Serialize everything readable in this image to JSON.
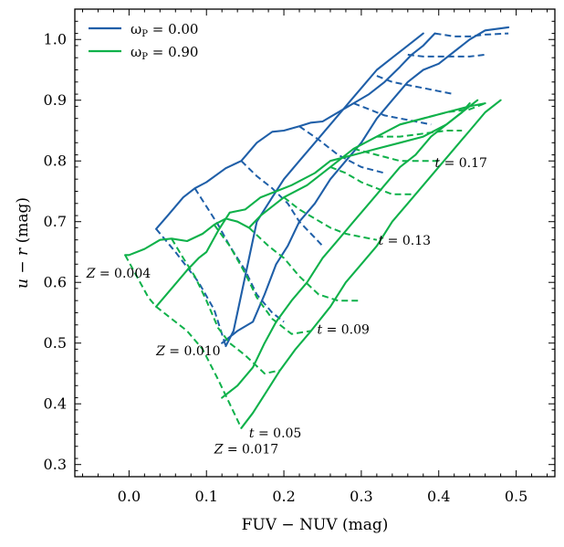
{
  "chart_data": {
    "type": "line",
    "xlabel": "FUV − NUV (mag)",
    "ylabel": "u − r (mag)",
    "xlim": [
      -0.07,
      0.55
    ],
    "ylim": [
      0.28,
      1.05
    ],
    "xticks": [
      0.0,
      0.1,
      0.2,
      0.3,
      0.4,
      0.5
    ],
    "yticks": [
      0.3,
      0.4,
      0.5,
      0.6,
      0.7,
      0.8,
      0.9,
      1.0
    ],
    "xtick_labels": [
      "0.0",
      "0.1",
      "0.2",
      "0.3",
      "0.4",
      "0.5"
    ],
    "ytick_labels": [
      "0.3",
      "0.4",
      "0.5",
      "0.6",
      "0.7",
      "0.8",
      "0.9",
      "1.0"
    ],
    "legend": {
      "placement": "top-left",
      "entries": [
        {
          "label": "ωP = 0.00",
          "color": "#1f5fa8"
        },
        {
          "label": "ωP = 0.90",
          "color": "#0fb14a"
        }
      ]
    },
    "colors": {
      "blue": "#1f5fa8",
      "green": "#0fb14a"
    },
    "grids": [
      {
        "name": "ωP = 0.00",
        "color": "#1f5fa8",
        "metallicity_tracks": [
          [
            [
              0.035,
              0.688
            ],
            [
              0.05,
              0.71
            ],
            [
              0.07,
              0.74
            ],
            [
              0.085,
              0.755
            ],
            [
              0.1,
              0.765
            ],
            [
              0.125,
              0.788
            ],
            [
              0.145,
              0.8
            ],
            [
              0.165,
              0.83
            ],
            [
              0.185,
              0.848
            ],
            [
              0.2,
              0.85
            ],
            [
              0.22,
              0.857
            ],
            [
              0.235,
              0.863
            ],
            [
              0.25,
              0.865
            ],
            [
              0.27,
              0.88
            ],
            [
              0.29,
              0.895
            ],
            [
              0.31,
              0.91
            ],
            [
              0.33,
              0.93
            ],
            [
              0.35,
              0.955
            ],
            [
              0.365,
              0.975
            ],
            [
              0.38,
              0.99
            ],
            [
              0.395,
              1.01
            ]
          ],
          [
            [
              0.125,
              0.495
            ],
            [
              0.135,
              0.52
            ],
            [
              0.145,
              0.58
            ],
            [
              0.155,
              0.64
            ],
            [
              0.165,
              0.7
            ],
            [
              0.185,
              0.74
            ],
            [
              0.2,
              0.77
            ],
            [
              0.22,
              0.8
            ],
            [
              0.24,
              0.83
            ],
            [
              0.26,
              0.86
            ],
            [
              0.28,
              0.89
            ],
            [
              0.3,
              0.92
            ],
            [
              0.32,
              0.95
            ],
            [
              0.34,
              0.97
            ],
            [
              0.36,
              0.99
            ],
            [
              0.38,
              1.01
            ]
          ],
          [
            [
              0.12,
              0.5
            ],
            [
              0.14,
              0.52
            ],
            [
              0.16,
              0.535
            ],
            [
              0.175,
              0.58
            ],
            [
              0.19,
              0.63
            ],
            [
              0.205,
              0.66
            ],
            [
              0.22,
              0.7
            ],
            [
              0.24,
              0.73
            ],
            [
              0.26,
              0.77
            ],
            [
              0.28,
              0.8
            ],
            [
              0.3,
              0.83
            ],
            [
              0.32,
              0.87
            ],
            [
              0.34,
              0.9
            ],
            [
              0.36,
              0.93
            ],
            [
              0.38,
              0.95
            ],
            [
              0.4,
              0.96
            ],
            [
              0.42,
              0.98
            ],
            [
              0.44,
              1.0
            ],
            [
              0.46,
              1.015
            ],
            [
              0.49,
              1.02
            ]
          ]
        ],
        "age_tracks": [
          [
            [
              0.035,
              0.688
            ],
            [
              0.06,
              0.65
            ],
            [
              0.09,
              0.6
            ],
            [
              0.11,
              0.555
            ],
            [
              0.125,
              0.495
            ]
          ],
          [
            [
              0.085,
              0.755
            ],
            [
              0.1,
              0.725
            ],
            [
              0.115,
              0.695
            ],
            [
              0.13,
              0.66
            ],
            [
              0.15,
              0.62
            ],
            [
              0.165,
              0.58
            ],
            [
              0.185,
              0.55
            ],
            [
              0.2,
              0.535
            ]
          ],
          [
            [
              0.145,
              0.8
            ],
            [
              0.165,
              0.775
            ],
            [
              0.185,
              0.755
            ],
            [
              0.205,
              0.73
            ],
            [
              0.22,
              0.7
            ],
            [
              0.235,
              0.68
            ],
            [
              0.25,
              0.66
            ]
          ],
          [
            [
              0.22,
              0.857
            ],
            [
              0.245,
              0.835
            ],
            [
              0.27,
              0.81
            ],
            [
              0.3,
              0.79
            ],
            [
              0.33,
              0.78
            ]
          ],
          [
            [
              0.29,
              0.895
            ],
            [
              0.31,
              0.885
            ],
            [
              0.33,
              0.875
            ],
            [
              0.35,
              0.87
            ],
            [
              0.37,
              0.865
            ],
            [
              0.39,
              0.86
            ]
          ],
          [
            [
              0.32,
              0.94
            ],
            [
              0.34,
              0.93
            ],
            [
              0.36,
              0.925
            ],
            [
              0.38,
              0.92
            ],
            [
              0.4,
              0.915
            ],
            [
              0.42,
              0.91
            ]
          ],
          [
            [
              0.36,
              0.975
            ],
            [
              0.38,
              0.972
            ],
            [
              0.4,
              0.972
            ],
            [
              0.42,
              0.972
            ],
            [
              0.44,
              0.972
            ],
            [
              0.46,
              0.975
            ]
          ],
          [
            [
              0.395,
              1.01
            ],
            [
              0.42,
              1.005
            ],
            [
              0.44,
              1.005
            ],
            [
              0.46,
              1.008
            ],
            [
              0.49,
              1.01
            ]
          ]
        ]
      },
      {
        "name": "ωP = 0.90",
        "color": "#0fb14a",
        "metallicity_tracks": [
          [
            [
              -0.005,
              0.645
            ],
            [
              0.0,
              0.645
            ],
            [
              0.02,
              0.655
            ],
            [
              0.04,
              0.67
            ],
            [
              0.055,
              0.672
            ],
            [
              0.075,
              0.668
            ],
            [
              0.095,
              0.68
            ],
            [
              0.11,
              0.695
            ],
            [
              0.125,
              0.705
            ],
            [
              0.14,
              0.7
            ],
            [
              0.155,
              0.69
            ],
            [
              0.17,
              0.71
            ],
            [
              0.2,
              0.74
            ],
            [
              0.23,
              0.76
            ],
            [
              0.26,
              0.79
            ],
            [
              0.29,
              0.82
            ],
            [
              0.32,
              0.84
            ],
            [
              0.35,
              0.86
            ],
            [
              0.38,
              0.87
            ],
            [
              0.41,
              0.88
            ],
            [
              0.44,
              0.89
            ],
            [
              0.46,
              0.895
            ]
          ],
          [
            [
              0.035,
              0.56
            ],
            [
              0.055,
              0.59
            ],
            [
              0.075,
              0.62
            ],
            [
              0.09,
              0.64
            ],
            [
              0.1,
              0.65
            ],
            [
              0.115,
              0.685
            ],
            [
              0.13,
              0.715
            ],
            [
              0.15,
              0.72
            ],
            [
              0.17,
              0.74
            ],
            [
              0.19,
              0.75
            ],
            [
              0.21,
              0.76
            ],
            [
              0.24,
              0.78
            ],
            [
              0.26,
              0.8
            ],
            [
              0.29,
              0.81
            ],
            [
              0.32,
              0.82
            ],
            [
              0.35,
              0.83
            ],
            [
              0.38,
              0.84
            ],
            [
              0.41,
              0.86
            ],
            [
              0.43,
              0.88
            ],
            [
              0.45,
              0.9
            ]
          ],
          [
            [
              0.12,
              0.41
            ],
            [
              0.14,
              0.43
            ],
            [
              0.16,
              0.46
            ],
            [
              0.175,
              0.5
            ],
            [
              0.19,
              0.535
            ],
            [
              0.21,
              0.57
            ],
            [
              0.23,
              0.6
            ],
            [
              0.25,
              0.64
            ],
            [
              0.27,
              0.67
            ],
            [
              0.29,
              0.7
            ],
            [
              0.31,
              0.73
            ],
            [
              0.33,
              0.76
            ],
            [
              0.35,
              0.79
            ],
            [
              0.37,
              0.81
            ],
            [
              0.39,
              0.84
            ],
            [
              0.41,
              0.86
            ],
            [
              0.43,
              0.88
            ],
            [
              0.44,
              0.895
            ]
          ],
          [
            [
              0.145,
              0.36
            ],
            [
              0.16,
              0.385
            ],
            [
              0.175,
              0.415
            ],
            [
              0.195,
              0.455
            ],
            [
              0.215,
              0.49
            ],
            [
              0.235,
              0.52
            ],
            [
              0.26,
              0.56
            ],
            [
              0.28,
              0.6
            ],
            [
              0.3,
              0.63
            ],
            [
              0.32,
              0.66
            ],
            [
              0.34,
              0.7
            ],
            [
              0.36,
              0.73
            ],
            [
              0.38,
              0.76
            ],
            [
              0.4,
              0.79
            ],
            [
              0.42,
              0.82
            ],
            [
              0.44,
              0.85
            ],
            [
              0.46,
              0.88
            ],
            [
              0.48,
              0.9
            ]
          ]
        ],
        "age_tracks": [
          [
            [
              -0.005,
              0.645
            ],
            [
              0.01,
              0.61
            ],
            [
              0.025,
              0.575
            ],
            [
              0.035,
              0.56
            ],
            [
              0.055,
              0.54
            ],
            [
              0.075,
              0.52
            ],
            [
              0.095,
              0.49
            ],
            [
              0.115,
              0.44
            ],
            [
              0.13,
              0.4
            ],
            [
              0.145,
              0.36
            ]
          ],
          [
            [
              0.055,
              0.672
            ],
            [
              0.07,
              0.64
            ],
            [
              0.085,
              0.61
            ],
            [
              0.1,
              0.57
            ],
            [
              0.115,
              0.525
            ],
            [
              0.13,
              0.5
            ],
            [
              0.15,
              0.48
            ],
            [
              0.175,
              0.45
            ],
            [
              0.195,
              0.455
            ]
          ],
          [
            [
              0.11,
              0.695
            ],
            [
              0.13,
              0.66
            ],
            [
              0.15,
              0.615
            ],
            [
              0.165,
              0.575
            ],
            [
              0.185,
              0.54
            ],
            [
              0.21,
              0.515
            ],
            [
              0.235,
              0.52
            ]
          ],
          [
            [
              0.155,
              0.69
            ],
            [
              0.18,
              0.66
            ],
            [
              0.2,
              0.64
            ],
            [
              0.22,
              0.61
            ],
            [
              0.245,
              0.58
            ],
            [
              0.27,
              0.57
            ],
            [
              0.3,
              0.57
            ]
          ],
          [
            [
              0.2,
              0.74
            ],
            [
              0.22,
              0.72
            ],
            [
              0.24,
              0.705
            ],
            [
              0.26,
              0.69
            ],
            [
              0.28,
              0.68
            ],
            [
              0.3,
              0.675
            ],
            [
              0.32,
              0.67
            ]
          ],
          [
            [
              0.26,
              0.79
            ],
            [
              0.28,
              0.78
            ],
            [
              0.3,
              0.765
            ],
            [
              0.32,
              0.755
            ],
            [
              0.34,
              0.745
            ],
            [
              0.36,
              0.745
            ],
            [
              0.37,
              0.745
            ]
          ],
          [
            [
              0.29,
              0.82
            ],
            [
              0.32,
              0.81
            ],
            [
              0.35,
              0.8
            ],
            [
              0.38,
              0.8
            ],
            [
              0.4,
              0.8
            ]
          ],
          [
            [
              0.32,
              0.84
            ],
            [
              0.35,
              0.84
            ],
            [
              0.38,
              0.845
            ],
            [
              0.41,
              0.85
            ],
            [
              0.43,
              0.85
            ]
          ],
          [
            [
              0.35,
              0.86
            ],
            [
              0.38,
              0.87
            ],
            [
              0.41,
              0.88
            ],
            [
              0.44,
              0.885
            ],
            [
              0.46,
              0.895
            ]
          ]
        ]
      }
    ],
    "annotations": [
      {
        "text": "t = 0.17",
        "x": 0.395,
        "y": 0.79
      },
      {
        "text": "t = 0.13",
        "x": 0.322,
        "y": 0.662
      },
      {
        "text": "t = 0.09",
        "x": 0.243,
        "y": 0.515
      },
      {
        "text": "t = 0.05",
        "x": 0.155,
        "y": 0.345
      },
      {
        "text": "Z = 0.004",
        "x": -0.055,
        "y": 0.608
      },
      {
        "text": "Z = 0.010",
        "x": 0.035,
        "y": 0.48
      },
      {
        "text": "Z = 0.017",
        "x": 0.11,
        "y": 0.318
      }
    ]
  }
}
